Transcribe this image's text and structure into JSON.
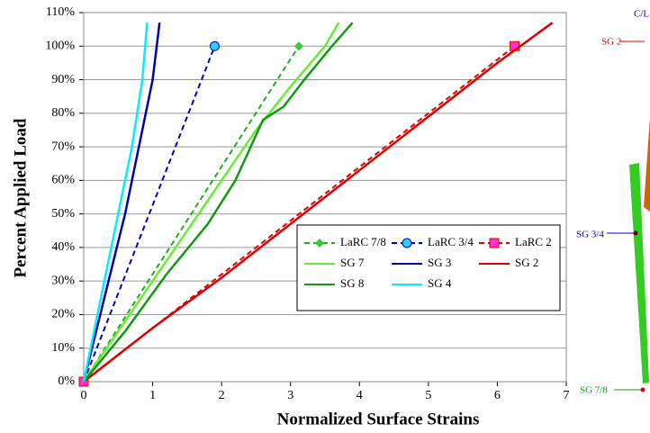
{
  "chart_data": {
    "type": "line",
    "xlabel": "Normalized Surface Strains",
    "ylabel": "Percent Applied Load",
    "xlim": [
      0,
      7
    ],
    "xticks": [
      0,
      1,
      2,
      3,
      4,
      5,
      6,
      7
    ],
    "ylim": [
      0,
      110
    ],
    "yticks": [
      {
        "value": 0,
        "label": "0%"
      },
      {
        "value": 10,
        "label": "10%"
      },
      {
        "value": 20,
        "label": "20%"
      },
      {
        "value": 30,
        "label": "30%"
      },
      {
        "value": 40,
        "label": "40%"
      },
      {
        "value": 50,
        "label": "50%"
      },
      {
        "value": 60,
        "label": "60%"
      },
      {
        "value": 70,
        "label": "70%"
      },
      {
        "value": 80,
        "label": "80%"
      },
      {
        "value": 90,
        "label": "90%"
      },
      {
        "value": 100,
        "label": "100%"
      },
      {
        "value": 110,
        "label": "110%"
      }
    ],
    "grid": true,
    "series": [
      {
        "name": "LaRC 7/8",
        "color": "#22aa22",
        "dashed": true,
        "marker": "diamond",
        "marker_color": "#33cc33",
        "x": [
          0,
          3.12
        ],
        "values": [
          0,
          100
        ]
      },
      {
        "name": "LaRC 3/4",
        "color": "#0000cc",
        "dashed": true,
        "marker": "circle",
        "marker_color": "#33ccff",
        "x": [
          0,
          1.9
        ],
        "values": [
          0,
          100
        ]
      },
      {
        "name": "LaRC 2",
        "color": "#dd0000",
        "dashed": true,
        "marker": "square",
        "marker_color": "#ff33cc",
        "x": [
          0,
          6.25
        ],
        "values": [
          0,
          100
        ]
      },
      {
        "name": "SG 7",
        "color": "#66ee33",
        "x": [
          0,
          0.5,
          1,
          1.5,
          2,
          2.5,
          3,
          3.5,
          3.7
        ],
        "values": [
          0,
          15,
          30,
          45,
          60,
          75,
          88,
          100,
          107
        ]
      },
      {
        "name": "SG 3",
        "color": "#0000aa",
        "x": [
          0,
          0.3,
          0.6,
          0.85,
          1.0,
          1.1
        ],
        "values": [
          0,
          25,
          50,
          75,
          90,
          107
        ]
      },
      {
        "name": "SG 2",
        "color": "#dd0000",
        "x": [
          0,
          1,
          2,
          3,
          4,
          5,
          6,
          6.8
        ],
        "values": [
          0,
          16,
          31,
          47,
          63,
          79,
          95,
          107
        ]
      },
      {
        "name": "SG 8",
        "color": "#119911",
        "x": [
          0,
          0.6,
          1.2,
          1.8,
          2.2,
          2.6,
          2.9,
          3.2,
          3.6,
          3.9
        ],
        "values": [
          0,
          15,
          32,
          47,
          60,
          78,
          82,
          90,
          100,
          107
        ]
      },
      {
        "name": "SG 4",
        "color": "#00eeff",
        "x": [
          0,
          0.3,
          0.5,
          0.7,
          0.85,
          0.92
        ],
        "values": [
          0,
          30,
          50,
          70,
          90,
          107
        ]
      }
    ]
  },
  "diagram": {
    "labels": [
      "C/L",
      "SG 2",
      "SG 3/4",
      "SG 7/8"
    ]
  }
}
